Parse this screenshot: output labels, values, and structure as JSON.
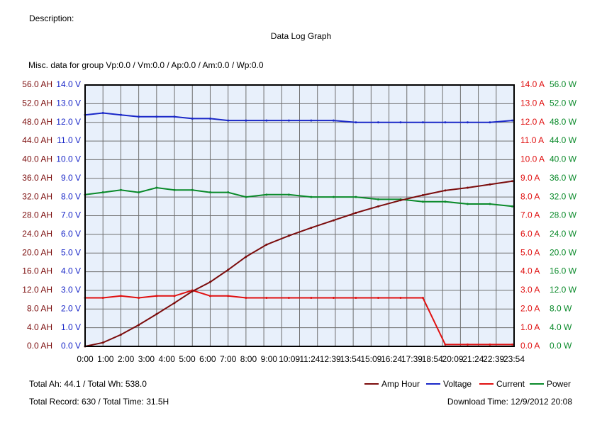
{
  "header": {
    "description": "Description:",
    "title": "Data Log Graph",
    "misc": "Misc. data for group Vp:0.0 / Vm:0.0 / Ap:0.0 / Am:0.0 / Wp:0.0"
  },
  "footer": {
    "totals": "Total Ah: 44.1 / Total Wh: 538.0",
    "record": "Total Record: 630 / Total Time: 31.5H",
    "download": "Download Time: 12/9/2012 20:08"
  },
  "legend": [
    {
      "label": "Amp Hour",
      "color": "#7b0c0c"
    },
    {
      "label": "Voltage",
      "color": "#1a28c8"
    },
    {
      "label": "Current",
      "color": "#e01010"
    },
    {
      "label": "Power",
      "color": "#0a8a2a"
    }
  ],
  "chart_data": {
    "type": "line",
    "title": "Data Log Graph",
    "x_tick_labels": [
      "0:00",
      "1:00",
      "2:00",
      "3:00",
      "4:00",
      "5:00",
      "6:00",
      "7:00",
      "8:00",
      "9:00",
      "10:09",
      "11:24",
      "12:39",
      "13:54",
      "15:09",
      "16:24",
      "17:39",
      "18:54",
      "20:09",
      "21:24",
      "22:39",
      "23:54"
    ],
    "axes": {
      "amp_hour": {
        "unit": "AH",
        "range": [
          0,
          56
        ],
        "ticks": [
          "0.0 AH",
          "4.0 AH",
          "8.0 AH",
          "12.0 AH",
          "16.0 AH",
          "20.0 AH",
          "24.0 AH",
          "28.0 AH",
          "32.0 AH",
          "36.0 AH",
          "40.0 AH",
          "44.0 AH",
          "48.0 AH",
          "52.0 AH",
          "56.0 AH"
        ],
        "color": "#7b0c0c"
      },
      "voltage": {
        "unit": "V",
        "range": [
          0,
          14
        ],
        "ticks": [
          "0.0 V",
          "1.0 V",
          "2.0 V",
          "3.0 V",
          "4.0 V",
          "5.0 V",
          "6.0 V",
          "7.0 V",
          "8.0 V",
          "9.0 V",
          "10.0 V",
          "11.0 V",
          "12.0 V",
          "13.0 V",
          "14.0 V"
        ],
        "color": "#1a28c8"
      },
      "current": {
        "unit": "A",
        "range": [
          0,
          14
        ],
        "ticks": [
          "0.0 A",
          "1.0 A",
          "2.0 A",
          "3.0 A",
          "4.0 A",
          "5.0 A",
          "6.0 A",
          "7.0 A",
          "8.0 A",
          "9.0 A",
          "10.0 A",
          "11.0 A",
          "12.0 A",
          "13.0 A",
          "14.0 A"
        ],
        "color": "#e01010"
      },
      "power": {
        "unit": "W",
        "range": [
          0,
          56
        ],
        "ticks": [
          "0.0 W",
          "4.0 W",
          "8.0 W",
          "12.0 W",
          "16.0 W",
          "20.0 W",
          "24.0 W",
          "28.0 W",
          "32.0 W",
          "36.0 W",
          "40.0 W",
          "44.0 W",
          "48.0 W",
          "52.0 W",
          "56.0 W"
        ],
        "color": "#0a8a2a"
      }
    },
    "series": [
      {
        "name": "Amp Hour",
        "axis": "amp_hour",
        "color": "#7b0c0c",
        "x": [
          0,
          1,
          2,
          3,
          4,
          5,
          6,
          7,
          8,
          9,
          10.15,
          11.4,
          12.65,
          13.9,
          15.15,
          16.4,
          17.65,
          18.9,
          20.15,
          21.4,
          22.65,
          23.9
        ],
        "y": [
          0,
          0.8,
          2.5,
          4.6,
          6.9,
          9.3,
          11.8,
          13.8,
          16.4,
          19.2,
          21.8,
          23.7,
          25.4,
          27.0,
          28.6,
          30.0,
          31.3,
          32.4,
          33.4,
          34.0,
          34.7,
          35.4
        ]
      },
      {
        "name": "Voltage",
        "axis": "voltage",
        "color": "#1a28c8",
        "x": [
          0,
          1,
          2,
          3,
          4,
          5,
          6,
          7,
          8,
          9,
          10.15,
          11.4,
          12.65,
          13.9,
          15.15,
          16.4,
          17.65,
          18.9,
          20.15,
          21.4,
          22.65,
          23.9
        ],
        "y": [
          12.4,
          12.5,
          12.4,
          12.3,
          12.3,
          12.3,
          12.2,
          12.2,
          12.1,
          12.1,
          12.1,
          12.1,
          12.1,
          12.1,
          12.0,
          12.0,
          12.0,
          12.0,
          12.0,
          12.0,
          12.0,
          12.1
        ]
      },
      {
        "name": "Current",
        "axis": "current",
        "color": "#e01010",
        "x": [
          0,
          1,
          2,
          3,
          4,
          5,
          6,
          7,
          8,
          9,
          10.15,
          11.4,
          12.65,
          13.9,
          15.15,
          16.4,
          17.65,
          18.9,
          20.15,
          21.4,
          22.65,
          23.9
        ],
        "y": [
          2.6,
          2.6,
          2.7,
          2.6,
          2.7,
          2.7,
          3.0,
          2.7,
          2.7,
          2.6,
          2.6,
          2.6,
          2.6,
          2.6,
          2.6,
          2.6,
          2.6,
          2.6,
          0.1,
          0.1,
          0.1,
          0.1
        ]
      },
      {
        "name": "Power",
        "axis": "power",
        "color": "#0a8a2a",
        "x": [
          0,
          1,
          2,
          3,
          4,
          5,
          6,
          7,
          8,
          9,
          10.15,
          11.4,
          12.65,
          13.9,
          15.15,
          16.4,
          17.65,
          18.9,
          20.15,
          21.4,
          22.65,
          23.9
        ],
        "y": [
          32.5,
          33.0,
          33.5,
          33.0,
          34.0,
          33.5,
          33.5,
          33.0,
          33.0,
          32.0,
          32.5,
          32.5,
          32.0,
          32.0,
          32.0,
          31.5,
          31.5,
          31.0,
          31.0,
          30.5,
          30.5,
          30.0
        ]
      }
    ],
    "grid": true,
    "legend_position": "bottom-right"
  }
}
